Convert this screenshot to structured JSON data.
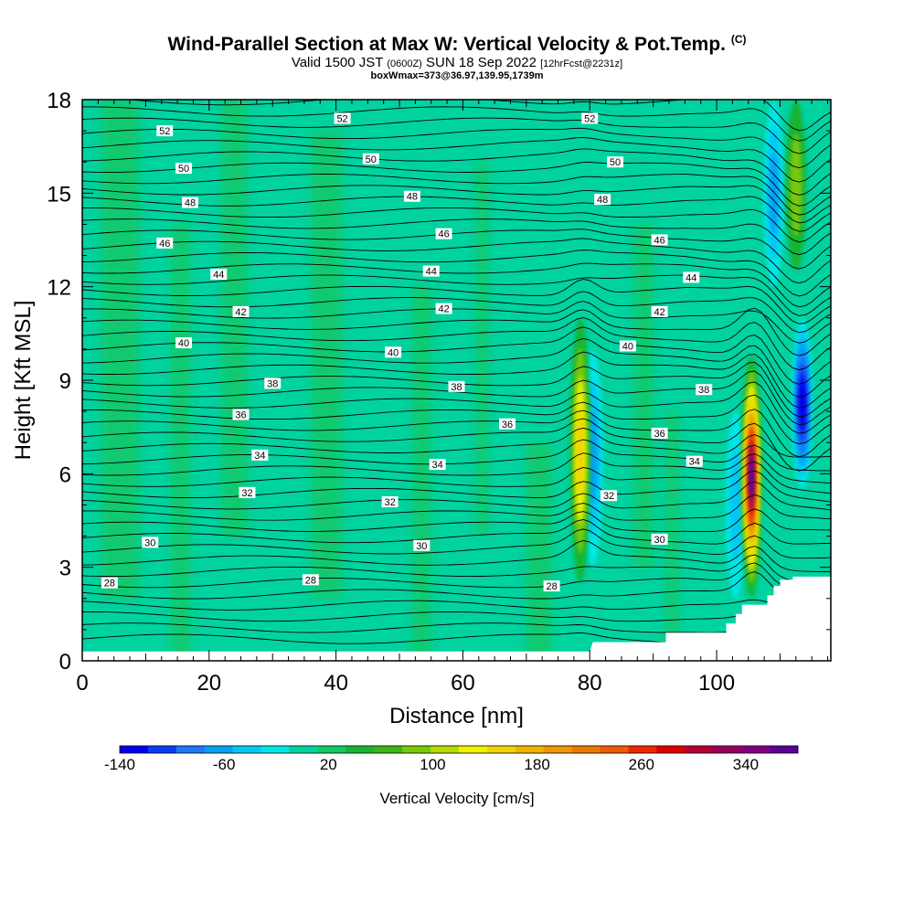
{
  "title_main": "Wind-Parallel Section at Max W: Vertical Velocity & Pot.Temp.",
  "title_tag": "(C)",
  "subtitle_a": "Valid 1500 JST",
  "subtitle_b": "(0600Z)",
  "subtitle_c": "SUN 18 Sep 2022",
  "subtitle_d": "[12hrFcst@2231z]",
  "subtitle_line2": "boxWmax=373@36.97,139.95,1739m",
  "chart_data": {
    "type": "heatmap",
    "xlabel": "Distance [nm]",
    "ylabel": "Height [Kft MSL]",
    "xlim": [
      0,
      118
    ],
    "ylim": [
      0,
      18
    ],
    "x_ticks": [
      0,
      20,
      40,
      60,
      80,
      100
    ],
    "y_ticks": [
      0,
      3,
      6,
      9,
      12,
      15,
      18
    ],
    "grid": false,
    "colorbar": {
      "title": "Vertical Velocity [cm/s]",
      "labels": [
        -140,
        -60,
        20,
        100,
        180,
        260,
        340
      ],
      "colors": [
        "#0000ee",
        "#0a3cf0",
        "#1e78f5",
        "#00a0f5",
        "#00c8f5",
        "#00e6e6",
        "#00d2a0",
        "#14c864",
        "#14b432",
        "#3cb414",
        "#78c80a",
        "#b4dc00",
        "#f0f000",
        "#f0d200",
        "#f0b400",
        "#f09600",
        "#f07800",
        "#f05a00",
        "#eb2800",
        "#dc0000",
        "#b40032",
        "#96005a",
        "#820082",
        "#5a0096"
      ],
      "min": -140,
      "max": 380
    },
    "field_description": "Mostly weak vertical motion (0 to 40 cm/s) with updraft cores",
    "updrafts": [
      {
        "x": 78.5,
        "ymin": 2.5,
        "ymax": 11,
        "peak": 180
      },
      {
        "x": 105.5,
        "ymin": 2.0,
        "ymax": 9.8,
        "peak": 373
      },
      {
        "x": 112.5,
        "ymin": 12.5,
        "ymax": 18,
        "peak": 80
      }
    ],
    "downdrafts": [
      {
        "x": 80.5,
        "ymin": 3,
        "ymax": 10,
        "peak": -60
      },
      {
        "x": 103,
        "ymin": 2,
        "ymax": 8,
        "peak": -40
      },
      {
        "x": 113.5,
        "ymin": 5.5,
        "ymax": 11,
        "peak": -140
      },
      {
        "x": 109,
        "ymin": 12,
        "ymax": 18,
        "peak": -60
      }
    ],
    "contour_field": "Potential Temperature (C)",
    "contour_levels": [
      28,
      30,
      32,
      34,
      36,
      38,
      40,
      42,
      44,
      46,
      48,
      50,
      52
    ],
    "contour_labels": [
      {
        "text": "52",
        "x": 13,
        "y": 17.0
      },
      {
        "text": "52",
        "x": 41,
        "y": 17.4
      },
      {
        "text": "52",
        "x": 80,
        "y": 17.4
      },
      {
        "text": "50",
        "x": 16,
        "y": 15.8
      },
      {
        "text": "50",
        "x": 45.5,
        "y": 16.1
      },
      {
        "text": "50",
        "x": 84,
        "y": 16.0
      },
      {
        "text": "48",
        "x": 17,
        "y": 14.7
      },
      {
        "text": "48",
        "x": 52,
        "y": 14.9
      },
      {
        "text": "48",
        "x": 82,
        "y": 14.8
      },
      {
        "text": "46",
        "x": 13,
        "y": 13.4
      },
      {
        "text": "46",
        "x": 57,
        "y": 13.7
      },
      {
        "text": "46",
        "x": 91,
        "y": 13.5
      },
      {
        "text": "44",
        "x": 21.5,
        "y": 12.4
      },
      {
        "text": "44",
        "x": 55,
        "y": 12.5
      },
      {
        "text": "44",
        "x": 96,
        "y": 12.3
      },
      {
        "text": "42",
        "x": 25,
        "y": 11.2
      },
      {
        "text": "42",
        "x": 57,
        "y": 11.3
      },
      {
        "text": "42",
        "x": 91,
        "y": 11.2
      },
      {
        "text": "40",
        "x": 16,
        "y": 10.2
      },
      {
        "text": "40",
        "x": 49,
        "y": 9.9
      },
      {
        "text": "40",
        "x": 86,
        "y": 10.1
      },
      {
        "text": "38",
        "x": 30,
        "y": 8.9
      },
      {
        "text": "38",
        "x": 59,
        "y": 8.8
      },
      {
        "text": "38",
        "x": 98,
        "y": 8.7
      },
      {
        "text": "36",
        "x": 25,
        "y": 7.9
      },
      {
        "text": "36",
        "x": 67,
        "y": 7.6
      },
      {
        "text": "36",
        "x": 91,
        "y": 7.3
      },
      {
        "text": "34",
        "x": 28,
        "y": 6.6
      },
      {
        "text": "34",
        "x": 56,
        "y": 6.3
      },
      {
        "text": "34",
        "x": 96.5,
        "y": 6.4
      },
      {
        "text": "32",
        "x": 26,
        "y": 5.4
      },
      {
        "text": "32",
        "x": 48.5,
        "y": 5.1
      },
      {
        "text": "32",
        "x": 83,
        "y": 5.3
      },
      {
        "text": "30",
        "x": 10.7,
        "y": 3.8
      },
      {
        "text": "30",
        "x": 53.5,
        "y": 3.7
      },
      {
        "text": "30",
        "x": 91,
        "y": 3.9
      },
      {
        "text": "28",
        "x": 4.3,
        "y": 2.5
      },
      {
        "text": "28",
        "x": 36,
        "y": 2.6
      },
      {
        "text": "28",
        "x": 74,
        "y": 2.4
      }
    ],
    "terrain": {
      "type": "blocked-below-ground",
      "x": [
        0,
        80,
        80.5,
        92,
        92,
        101.5,
        101.5,
        103,
        103,
        104,
        104,
        108,
        108,
        109,
        109,
        110,
        110,
        111,
        111,
        112,
        112,
        118
      ],
      "y": [
        0.3,
        0.3,
        0.6,
        0.6,
        0.9,
        0.9,
        1.2,
        1.2,
        1.5,
        1.5,
        1.8,
        1.8,
        2.1,
        2.1,
        2.4,
        2.4,
        2.6,
        2.6,
        2.6,
        2.6,
        2.7,
        2.7
      ]
    }
  }
}
